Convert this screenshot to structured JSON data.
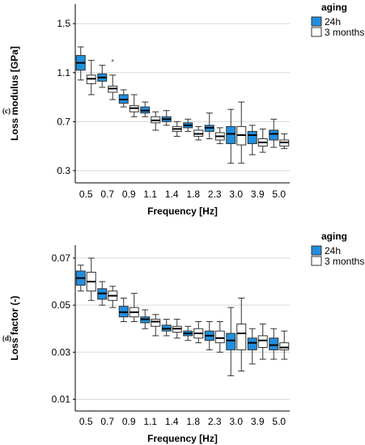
{
  "legend_title": "aging",
  "colors": {
    "24h": "#1f8fe0",
    "3 months": "#ffffff",
    "stroke": "#333333",
    "grid": "#d9d9d9"
  },
  "chart_data": [
    {
      "type": "boxplot",
      "panel_label": "(c)",
      "xlabel": "Frequency  [Hz]",
      "ylabel": "Loss modulus [GPa]",
      "categories": [
        "0.5",
        "0.7",
        "0.9",
        "1.1",
        "1.4",
        "1.8",
        "2.3",
        "3.0",
        "3.9",
        "5.0"
      ],
      "ylim": [
        0.2,
        1.66
      ],
      "yticks": [
        "0.3",
        "0.7",
        "1.1",
        "1.5"
      ],
      "grid": true,
      "legend_position": "top-right",
      "series": [
        {
          "name": "24h",
          "boxes": [
            {
              "min": 1.04,
              "q1": 1.12,
              "median": 1.18,
              "q3": 1.24,
              "max": 1.31
            },
            {
              "min": 0.98,
              "q1": 1.03,
              "median": 1.06,
              "q3": 1.09,
              "max": 1.16
            },
            {
              "min": 0.82,
              "q1": 0.85,
              "median": 0.88,
              "q3": 0.92,
              "max": 0.96
            },
            {
              "min": 0.74,
              "q1": 0.77,
              "median": 0.79,
              "q3": 0.82,
              "max": 0.86
            },
            {
              "min": 0.67,
              "q1": 0.7,
              "median": 0.72,
              "q3": 0.74,
              "max": 0.79
            },
            {
              "min": 0.62,
              "q1": 0.65,
              "median": 0.67,
              "q3": 0.69,
              "max": 0.72
            },
            {
              "min": 0.56,
              "q1": 0.62,
              "median": 0.65,
              "q3": 0.67,
              "max": 0.77
            },
            {
              "min": 0.36,
              "q1": 0.52,
              "median": 0.6,
              "q3": 0.66,
              "max": 0.8
            },
            {
              "min": 0.43,
              "q1": 0.52,
              "median": 0.59,
              "q3": 0.62,
              "max": 0.67
            },
            {
              "min": 0.49,
              "q1": 0.55,
              "median": 0.6,
              "q3": 0.63,
              "max": 0.72
            }
          ]
        },
        {
          "name": "3 months",
          "boxes": [
            {
              "min": 0.92,
              "q1": 1.01,
              "median": 1.05,
              "q3": 1.08,
              "max": 1.2
            },
            {
              "min": 0.88,
              "q1": 0.94,
              "median": 0.97,
              "q3": 0.99,
              "max": 1.08
            },
            {
              "min": 0.74,
              "q1": 0.78,
              "median": 0.81,
              "q3": 0.83,
              "max": 0.92
            },
            {
              "min": 0.63,
              "q1": 0.69,
              "median": 0.71,
              "q3": 0.74,
              "max": 0.78
            },
            {
              "min": 0.58,
              "q1": 0.62,
              "median": 0.64,
              "q3": 0.66,
              "max": 0.7
            },
            {
              "min": 0.55,
              "q1": 0.58,
              "median": 0.6,
              "q3": 0.63,
              "max": 0.66
            },
            {
              "min": 0.52,
              "q1": 0.55,
              "median": 0.58,
              "q3": 0.61,
              "max": 0.65
            },
            {
              "min": 0.36,
              "q1": 0.51,
              "median": 0.59,
              "q3": 0.66,
              "max": 0.86
            },
            {
              "min": 0.45,
              "q1": 0.5,
              "median": 0.53,
              "q3": 0.56,
              "max": 0.64
            },
            {
              "min": 0.48,
              "q1": 0.5,
              "median": 0.53,
              "q3": 0.55,
              "max": 0.6
            }
          ]
        }
      ],
      "outliers": [
        {
          "series": "3 months",
          "category": "0.7",
          "value": 1.19
        }
      ]
    },
    {
      "type": "boxplot",
      "panel_label": "(d)",
      "xlabel": "Frequency  [Hz]",
      "ylabel": "Loss factor (-)",
      "categories": [
        "0.5",
        "0.7",
        "0.9",
        "1.1",
        "1.4",
        "1.8",
        "2.3",
        "3.0",
        "3.9",
        "5.0"
      ],
      "ylim": [
        0.005,
        0.0755
      ],
      "yticks": [
        "0.01",
        "0.03",
        "0.05",
        "0.07"
      ],
      "grid": true,
      "legend_position": "top-right",
      "series": [
        {
          "name": "24h",
          "boxes": [
            {
              "min": 0.056,
              "q1": 0.0585,
              "median": 0.0615,
              "q3": 0.0645,
              "max": 0.067
            },
            {
              "min": 0.05,
              "q1": 0.0525,
              "median": 0.055,
              "q3": 0.057,
              "max": 0.06
            },
            {
              "min": 0.043,
              "q1": 0.045,
              "median": 0.047,
              "q3": 0.0495,
              "max": 0.053
            },
            {
              "min": 0.04,
              "q1": 0.0425,
              "median": 0.044,
              "q3": 0.045,
              "max": 0.048
            },
            {
              "min": 0.037,
              "q1": 0.039,
              "median": 0.04,
              "q3": 0.0415,
              "max": 0.044
            },
            {
              "min": 0.035,
              "q1": 0.037,
              "median": 0.038,
              "q3": 0.039,
              "max": 0.041
            },
            {
              "min": 0.031,
              "q1": 0.035,
              "median": 0.037,
              "q3": 0.039,
              "max": 0.043
            },
            {
              "min": 0.02,
              "q1": 0.031,
              "median": 0.035,
              "q3": 0.038,
              "max": 0.049
            },
            {
              "min": 0.025,
              "q1": 0.031,
              "median": 0.034,
              "q3": 0.036,
              "max": 0.04
            },
            {
              "min": 0.027,
              "q1": 0.031,
              "median": 0.033,
              "q3": 0.036,
              "max": 0.04
            }
          ]
        },
        {
          "name": "3 months",
          "boxes": [
            {
              "min": 0.052,
              "q1": 0.056,
              "median": 0.06,
              "q3": 0.064,
              "max": 0.07
            },
            {
              "min": 0.049,
              "q1": 0.052,
              "median": 0.054,
              "q3": 0.056,
              "max": 0.058
            },
            {
              "min": 0.043,
              "q1": 0.045,
              "median": 0.047,
              "q3": 0.049,
              "max": 0.055
            },
            {
              "min": 0.037,
              "q1": 0.041,
              "median": 0.043,
              "q3": 0.044,
              "max": 0.046
            },
            {
              "min": 0.036,
              "q1": 0.0385,
              "median": 0.04,
              "q3": 0.041,
              "max": 0.044
            },
            {
              "min": 0.034,
              "q1": 0.036,
              "median": 0.038,
              "q3": 0.04,
              "max": 0.043
            },
            {
              "min": 0.03,
              "q1": 0.034,
              "median": 0.036,
              "q3": 0.039,
              "max": 0.043
            },
            {
              "min": 0.022,
              "q1": 0.031,
              "median": 0.038,
              "q3": 0.042,
              "max": 0.053
            },
            {
              "min": 0.027,
              "q1": 0.032,
              "median": 0.035,
              "q3": 0.037,
              "max": 0.042
            },
            {
              "min": 0.027,
              "q1": 0.031,
              "median": 0.032,
              "q3": 0.034,
              "max": 0.039
            }
          ]
        }
      ],
      "outliers": []
    }
  ]
}
